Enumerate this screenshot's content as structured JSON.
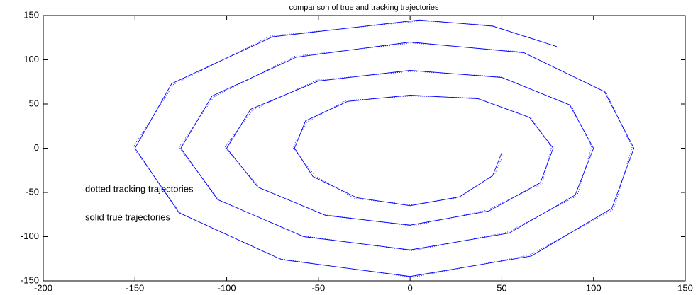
{
  "chart_data": {
    "type": "line",
    "title": "comparison of true and tracking trajectories",
    "annotations": [
      "dotted tracking trajectories",
      "solid true trajectories"
    ],
    "xlim": [
      -200,
      150
    ],
    "xticks": [
      -200,
      -150,
      -100,
      -50,
      0,
      50,
      100,
      150
    ],
    "ylim": [
      -150,
      150
    ],
    "yticks": [
      -150,
      -100,
      -50,
      0,
      50,
      100,
      150
    ],
    "series": [
      {
        "style": "solid",
        "color": "#0000ff",
        "x": [
          50,
          45,
          27,
          0,
          -29,
          -53,
          -63,
          -57,
          -34,
          0,
          37,
          65,
          78,
          71,
          43,
          0,
          -46,
          -83,
          -100,
          -87,
          -50,
          0,
          50,
          87,
          100,
          90,
          54,
          0,
          -58,
          -105,
          -125,
          -108,
          -62,
          0,
          62,
          106,
          122,
          110,
          66,
          0,
          -70,
          -126,
          -150,
          -130,
          -75,
          5,
          45,
          80
        ],
        "values": [
          -5,
          -31,
          -55,
          -65,
          -56,
          -32,
          0,
          31,
          53,
          60,
          56,
          35,
          0,
          -39,
          -71,
          -87,
          -76,
          -44,
          0,
          44,
          76,
          88,
          80,
          49,
          0,
          -53,
          -96,
          -115,
          -100,
          -58,
          0,
          59,
          103,
          120,
          108,
          64,
          0,
          -68,
          -122,
          -145,
          -126,
          -73,
          0,
          73,
          126,
          145,
          138,
          115
        ]
      },
      {
        "style": "dotted",
        "color": "#0000ff",
        "x": [
          51,
          46,
          26,
          1,
          -30,
          -52,
          -64,
          -56,
          -35,
          1,
          36,
          66,
          77,
          72,
          42,
          1,
          -47,
          -82,
          -101,
          -86,
          -51,
          1,
          49,
          88,
          99,
          91,
          53,
          1,
          -59,
          -104,
          -126,
          -107,
          -63,
          1,
          61,
          107,
          121,
          111,
          65,
          1,
          -71,
          -125,
          -151,
          -129,
          -76,
          6,
          44,
          81
        ],
        "values": [
          -6,
          -30,
          -56,
          -64,
          -57,
          -31,
          1,
          30,
          54,
          59,
          57,
          34,
          1,
          -40,
          -70,
          -88,
          -75,
          -45,
          1,
          43,
          77,
          87,
          81,
          48,
          1,
          -54,
          -95,
          -116,
          -99,
          -59,
          1,
          58,
          104,
          119,
          109,
          63,
          1,
          -69,
          -121,
          -146,
          -125,
          -74,
          1,
          72,
          127,
          144,
          139,
          114
        ]
      }
    ]
  }
}
